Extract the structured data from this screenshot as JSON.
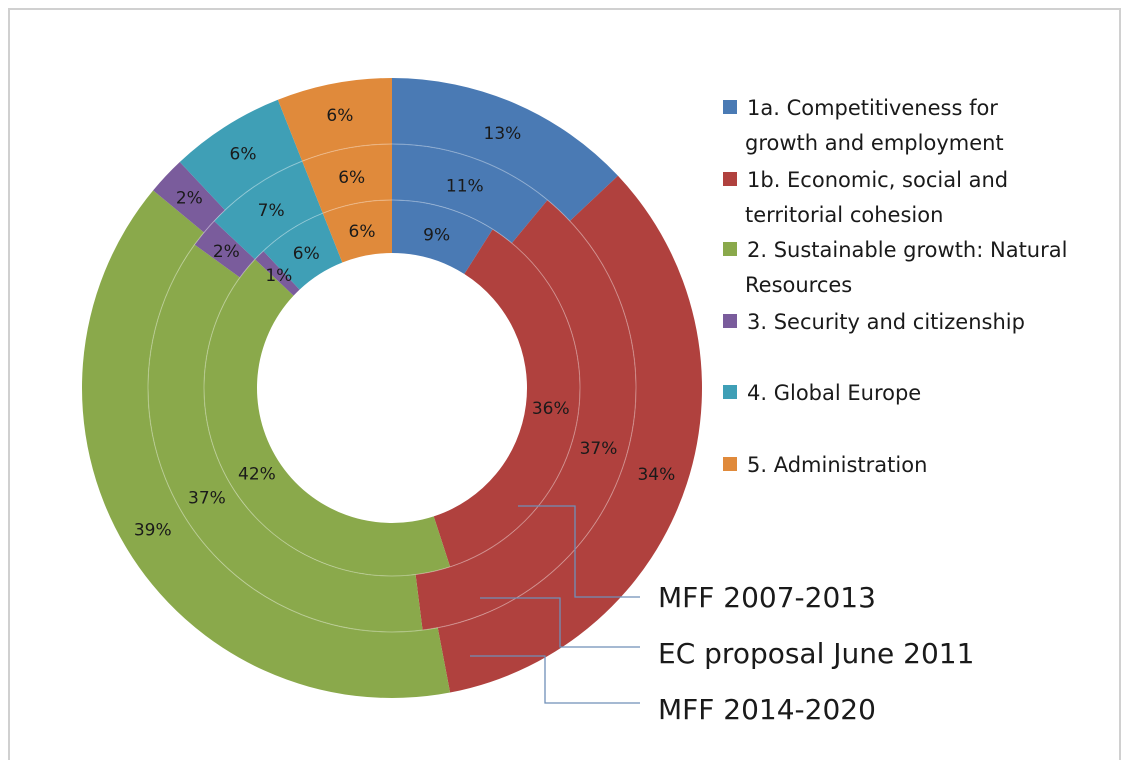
{
  "chart_data": {
    "type": "donut",
    "categories": [
      "1a. Competitiveness  for growth and employment",
      "1b. Economic, social and territorial cohesion",
      "2. Sustainable growth: Natural Resources",
      "3. Security and citizenship",
      "4. Global Europe",
      "5. Administration"
    ],
    "legend_lines": [
      [
        "1a. Competitiveness  for",
        "growth and employment"
      ],
      [
        "1b. Economic, social and",
        "territorial cohesion"
      ],
      [
        "2. Sustainable growth: Natural",
        "Resources"
      ],
      [
        "3. Security and citizenship"
      ],
      [
        "4. Global Europe"
      ],
      [
        "5. Administration"
      ]
    ],
    "colors": [
      "#4a7ab4",
      "#b0413e",
      "#8aa94b",
      "#7a5c9c",
      "#3f9fb6",
      "#e08a3b"
    ],
    "series": [
      {
        "name": "MFF 2007-2013",
        "values": [
          9,
          36,
          42,
          1,
          6,
          6
        ]
      },
      {
        "name": "EC proposal June 2011",
        "values": [
          11,
          37,
          37,
          2,
          7,
          6
        ]
      },
      {
        "name": "MFF 2014-2020",
        "values": [
          13,
          34,
          39,
          2,
          6,
          6
        ]
      }
    ],
    "value_labels": [
      [
        "9%",
        "36%",
        "42%",
        "1%",
        "6%",
        "6%"
      ],
      [
        "11%",
        "37%",
        "37%",
        "2%",
        "7%",
        "6%"
      ],
      [
        "13%",
        "34%",
        "39%",
        "2%",
        "6%",
        "6%"
      ]
    ],
    "legend_position": "right"
  }
}
